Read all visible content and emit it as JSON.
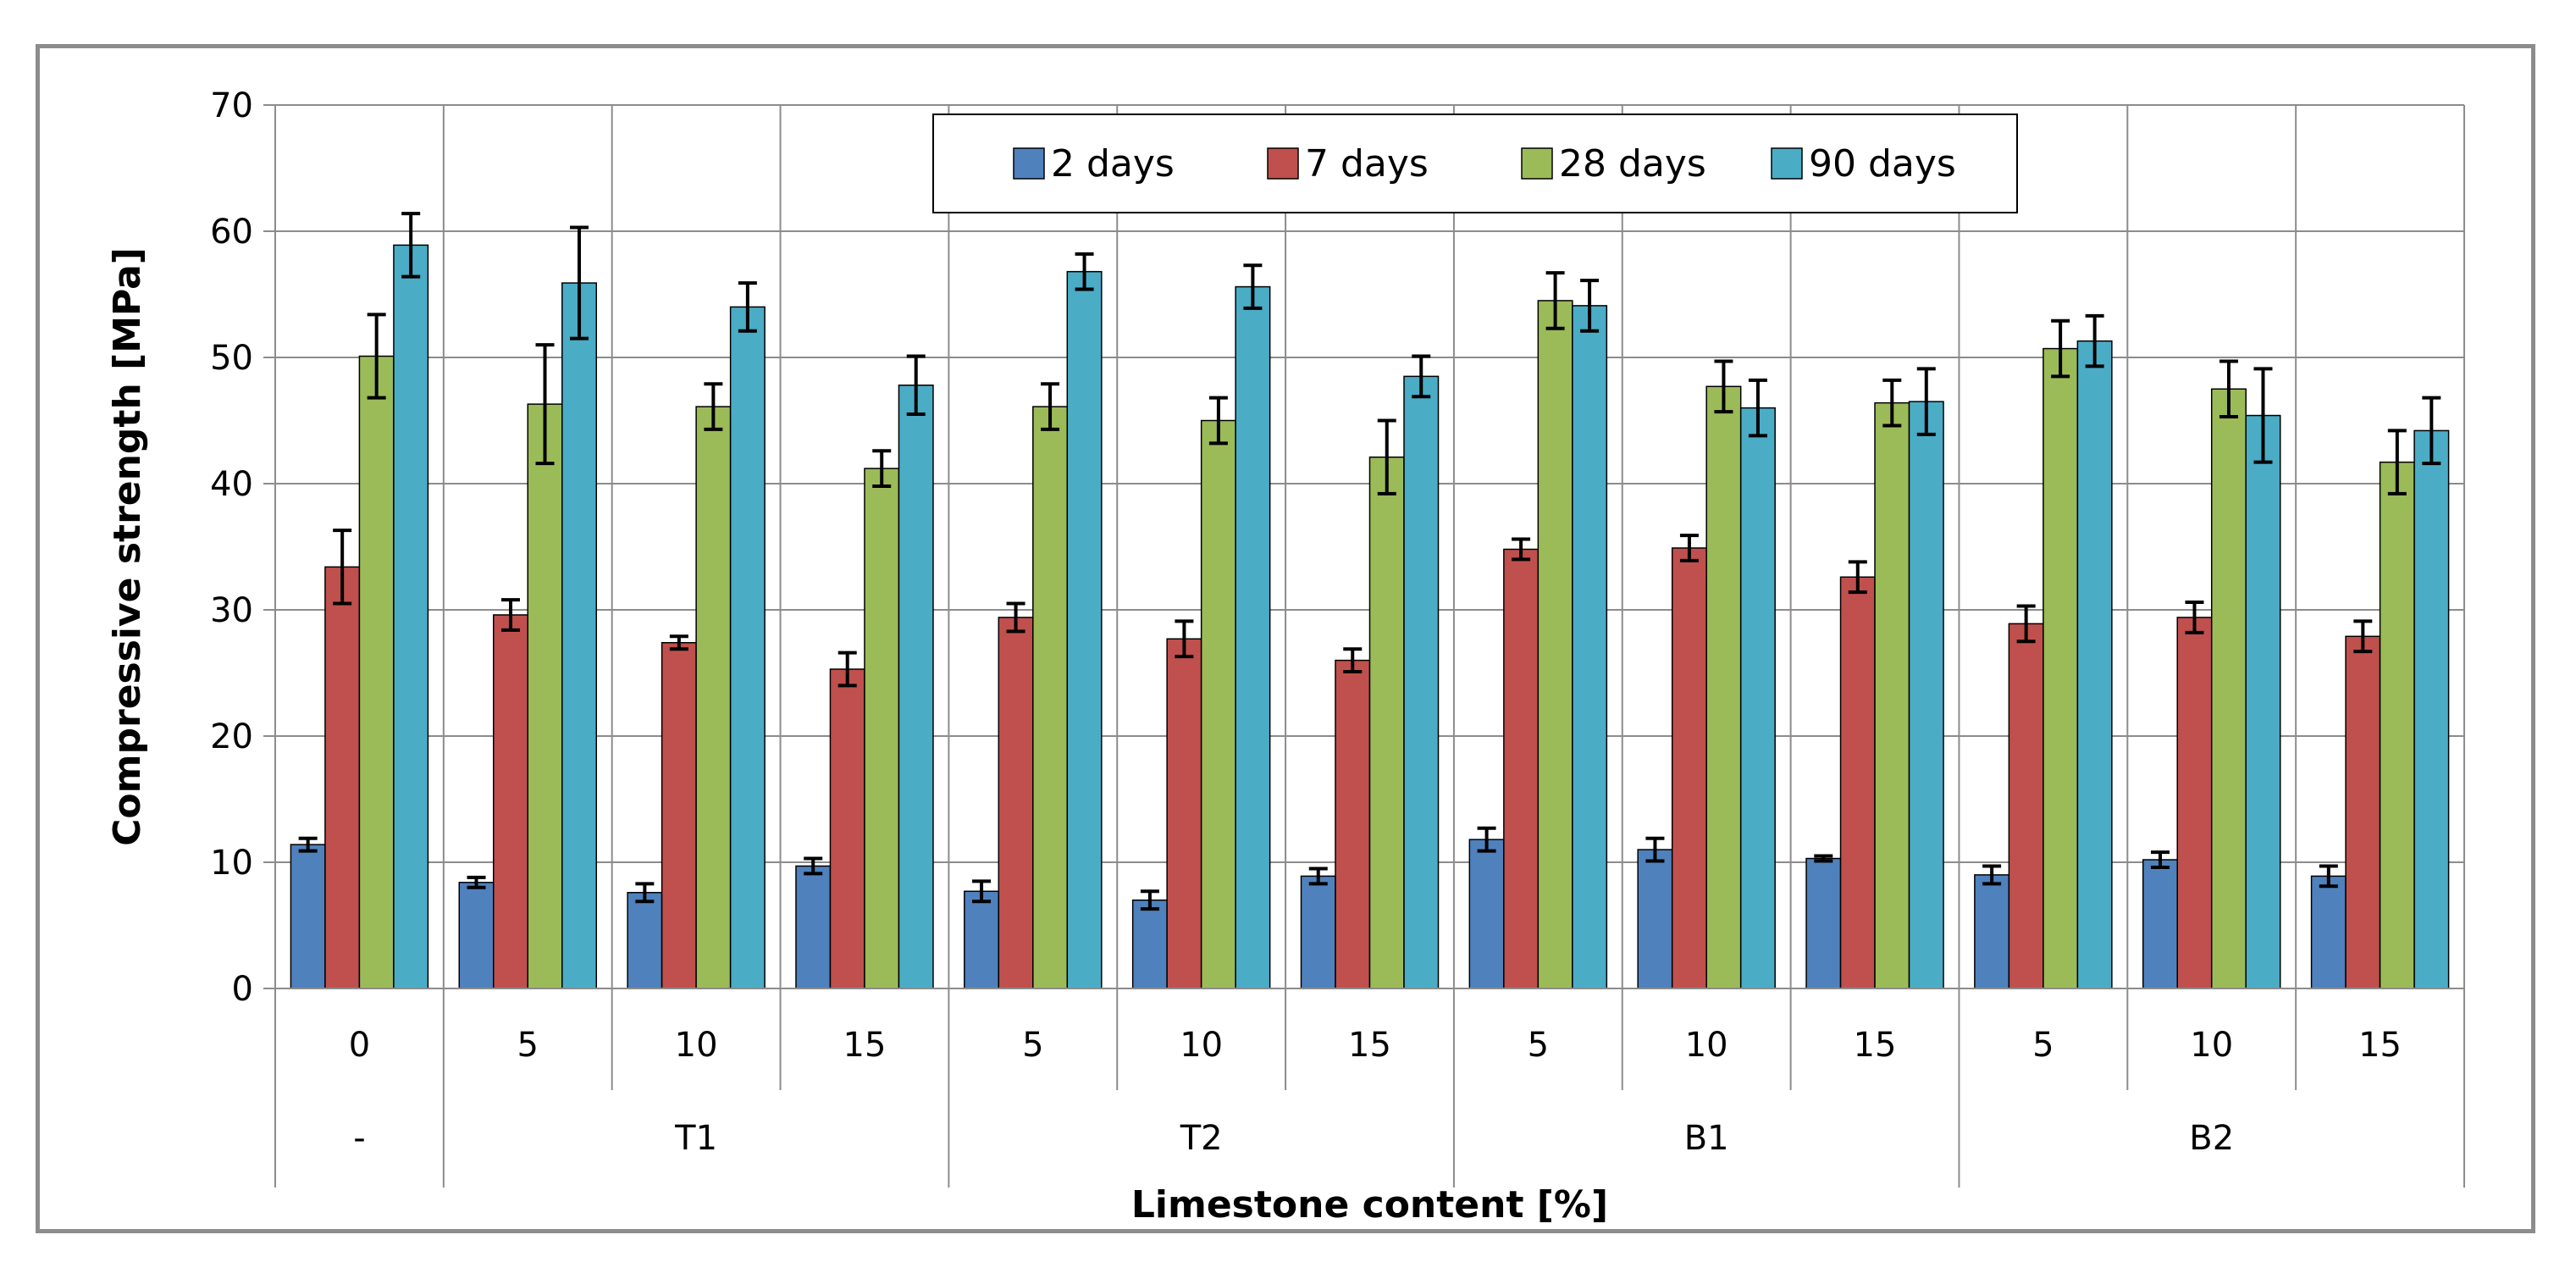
{
  "chart_data": {
    "type": "bar",
    "title": "",
    "xlabel": "Limestone content [%]",
    "ylabel": "Compressive strength [MPa]",
    "ylim": [
      0,
      70
    ],
    "yticks": [
      "0",
      "10",
      "20",
      "30",
      "40",
      "50",
      "60",
      "70"
    ],
    "grid": true,
    "legend_position": "top-center",
    "categories": [
      "0",
      "5",
      "10",
      "15",
      "5",
      "10",
      "15",
      "5",
      "10",
      "15",
      "5",
      "10",
      "15"
    ],
    "groups": [
      {
        "label": "-",
        "count": 1
      },
      {
        "label": "T1",
        "count": 3
      },
      {
        "label": "T2",
        "count": 3
      },
      {
        "label": "B1",
        "count": 3
      },
      {
        "label": "B2",
        "count": 3
      }
    ],
    "series": [
      {
        "name": "2 days",
        "color": "#4f81bd",
        "values": [
          11.4,
          8.4,
          7.6,
          9.7,
          7.7,
          7.0,
          8.9,
          11.8,
          11.0,
          10.3,
          9.0,
          10.2,
          8.9
        ],
        "errors": [
          0.5,
          0.4,
          0.7,
          0.6,
          0.8,
          0.7,
          0.6,
          0.9,
          0.9,
          0.2,
          0.7,
          0.6,
          0.8
        ]
      },
      {
        "name": "7 days",
        "color": "#c0504d",
        "values": [
          33.4,
          29.6,
          27.4,
          25.3,
          29.4,
          27.7,
          26.0,
          34.8,
          34.9,
          32.6,
          28.9,
          29.4,
          27.9
        ],
        "errors": [
          2.9,
          1.2,
          0.5,
          1.3,
          1.1,
          1.4,
          0.9,
          0.8,
          1.0,
          1.2,
          1.4,
          1.2,
          1.2
        ]
      },
      {
        "name": "28 days",
        "color": "#9bbb59",
        "values": [
          50.1,
          46.3,
          46.1,
          41.2,
          46.1,
          45.0,
          42.1,
          54.5,
          47.7,
          46.4,
          50.7,
          47.5,
          41.7
        ],
        "errors": [
          3.3,
          4.7,
          1.8,
          1.4,
          1.8,
          1.8,
          2.9,
          2.2,
          2.0,
          1.8,
          2.2,
          2.2,
          2.5
        ]
      },
      {
        "name": "90 days",
        "color": "#4bacc6",
        "values": [
          58.9,
          55.9,
          54.0,
          47.8,
          56.8,
          55.6,
          48.5,
          54.1,
          46.0,
          46.5,
          51.3,
          45.4,
          44.2
        ],
        "errors": [
          2.5,
          4.4,
          1.9,
          2.3,
          1.4,
          1.7,
          1.6,
          2.0,
          2.2,
          2.6,
          2.0,
          3.7,
          2.6
        ]
      }
    ]
  }
}
